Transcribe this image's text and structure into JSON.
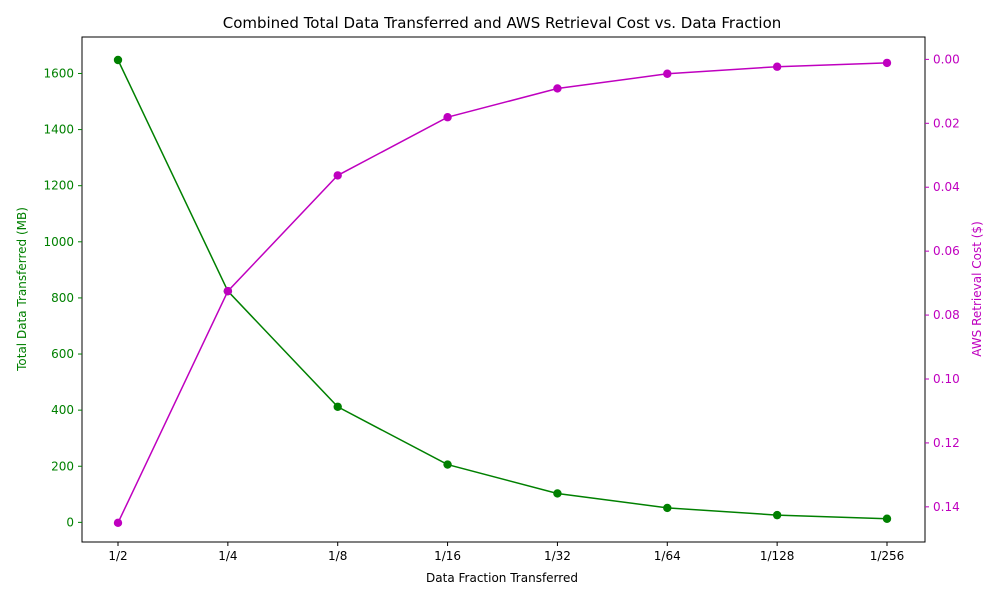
{
  "chart_data": {
    "type": "line",
    "title": "Combined Total Data Transferred and AWS Retrieval Cost vs. Data Fraction",
    "xlabel": "Data Fraction Transferred",
    "categories": [
      "1/2",
      "1/4",
      "1/8",
      "1/16",
      "1/32",
      "1/64",
      "1/128",
      "1/256"
    ],
    "grid": false,
    "left_axis": {
      "label": "Total Data Transferred (MB)",
      "color": "#008000",
      "ylim": [
        -70,
        1730
      ],
      "ticks": [
        0,
        200,
        400,
        600,
        800,
        1000,
        1200,
        1400,
        1600
      ],
      "tick_labels": [
        "0",
        "200",
        "400",
        "600",
        "800",
        "1000",
        "1200",
        "1400",
        "1600"
      ]
    },
    "right_axis": {
      "label": "AWS Retrieval Cost ($)",
      "color": "#bf00bf",
      "inverted": true,
      "ylim": [
        0.151,
        -0.007
      ],
      "ticks": [
        0.0,
        0.02,
        0.04,
        0.06,
        0.08,
        0.1,
        0.12,
        0.14
      ],
      "tick_labels": [
        "0.00",
        "0.02",
        "0.04",
        "0.06",
        "0.08",
        "0.10",
        "0.12",
        "0.14"
      ]
    },
    "series": [
      {
        "axis": "left",
        "color": "#008000",
        "values": [
          1648,
          824,
          412,
          206,
          103,
          51.5,
          25.75,
          12.9
        ]
      },
      {
        "axis": "right",
        "color": "#bf00bf",
        "values": [
          0.145,
          0.0725,
          0.0363,
          0.0181,
          0.0091,
          0.0045,
          0.0023,
          0.0011
        ]
      }
    ]
  }
}
